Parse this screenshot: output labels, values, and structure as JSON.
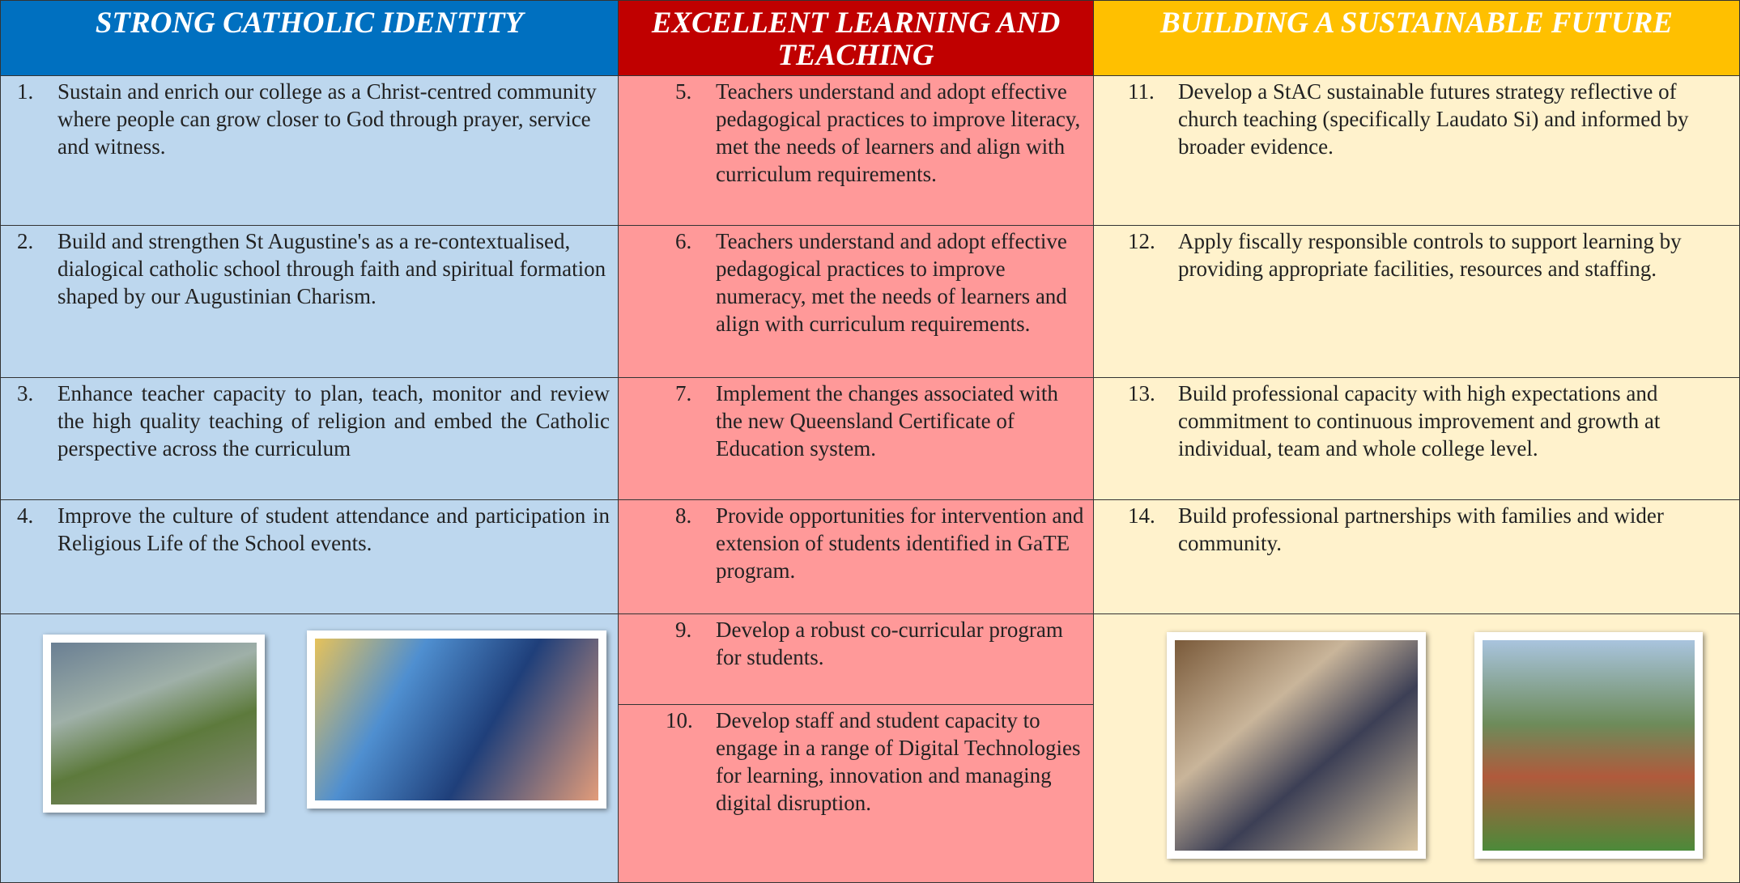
{
  "columns": [
    {
      "title": "STRONG CATHOLIC IDENTITY",
      "items": [
        {
          "number": "1.",
          "text": "Sustain and enrich our college as a Christ-centred community where people can grow closer to God through prayer, service and witness."
        },
        {
          "number": "2.",
          "text": "Build and strengthen St Augustine's as a re-contextualised, dialogical catholic school through faith and spiritual formation shaped by our Augustinian Charism."
        },
        {
          "number": "3.",
          "text": "Enhance teacher capacity to plan, teach, monitor and review the high quality teaching of religion and embed the Catholic perspective across the curriculum"
        },
        {
          "number": "4.",
          "text": "Improve the culture of student attendance and participation in Religious Life of the School events."
        }
      ]
    },
    {
      "title": "EXCELLENT LEARNING AND TEACHING",
      "items": [
        {
          "number": "5.",
          "text": "Teachers understand and adopt effective pedagogical practices to improve literacy, met the needs of learners and align with curriculum requirements."
        },
        {
          "number": "6.",
          "text": "Teachers understand and adopt effective pedagogical practices to improve numeracy, met the needs of learners and align with curriculum requirements."
        },
        {
          "number": "7.",
          "text": "Implement the changes associated with the new Queensland Certificate of Education system."
        },
        {
          "number": "8.",
          "text": "Provide opportunities for intervention and extension of students identified in GaTE program."
        },
        {
          "number": "9.",
          "text": "Develop a robust co-curricular program for students."
        },
        {
          "number": "10.",
          "text": "Develop staff and student capacity to engage in a range of Digital Technologies for learning, innovation and managing digital disruption."
        }
      ]
    },
    {
      "title": "BUILDING A SUSTAINABLE FUTURE",
      "items": [
        {
          "number": "11.",
          "text": "Develop a StAC sustainable futures strategy reflective of church teaching (specifically Laudato Si) and informed by broader evidence."
        },
        {
          "number": "12.",
          "text": "Apply fiscally responsible controls to support learning by providing appropriate facilities, resources and staffing."
        },
        {
          "number": "13.",
          "text": "Build professional capacity with high expectations and commitment to continuous improvement and growth at individual, team and whole college level."
        },
        {
          "number": "14.",
          "text": "Build professional partnerships with families and wider community."
        }
      ]
    }
  ]
}
